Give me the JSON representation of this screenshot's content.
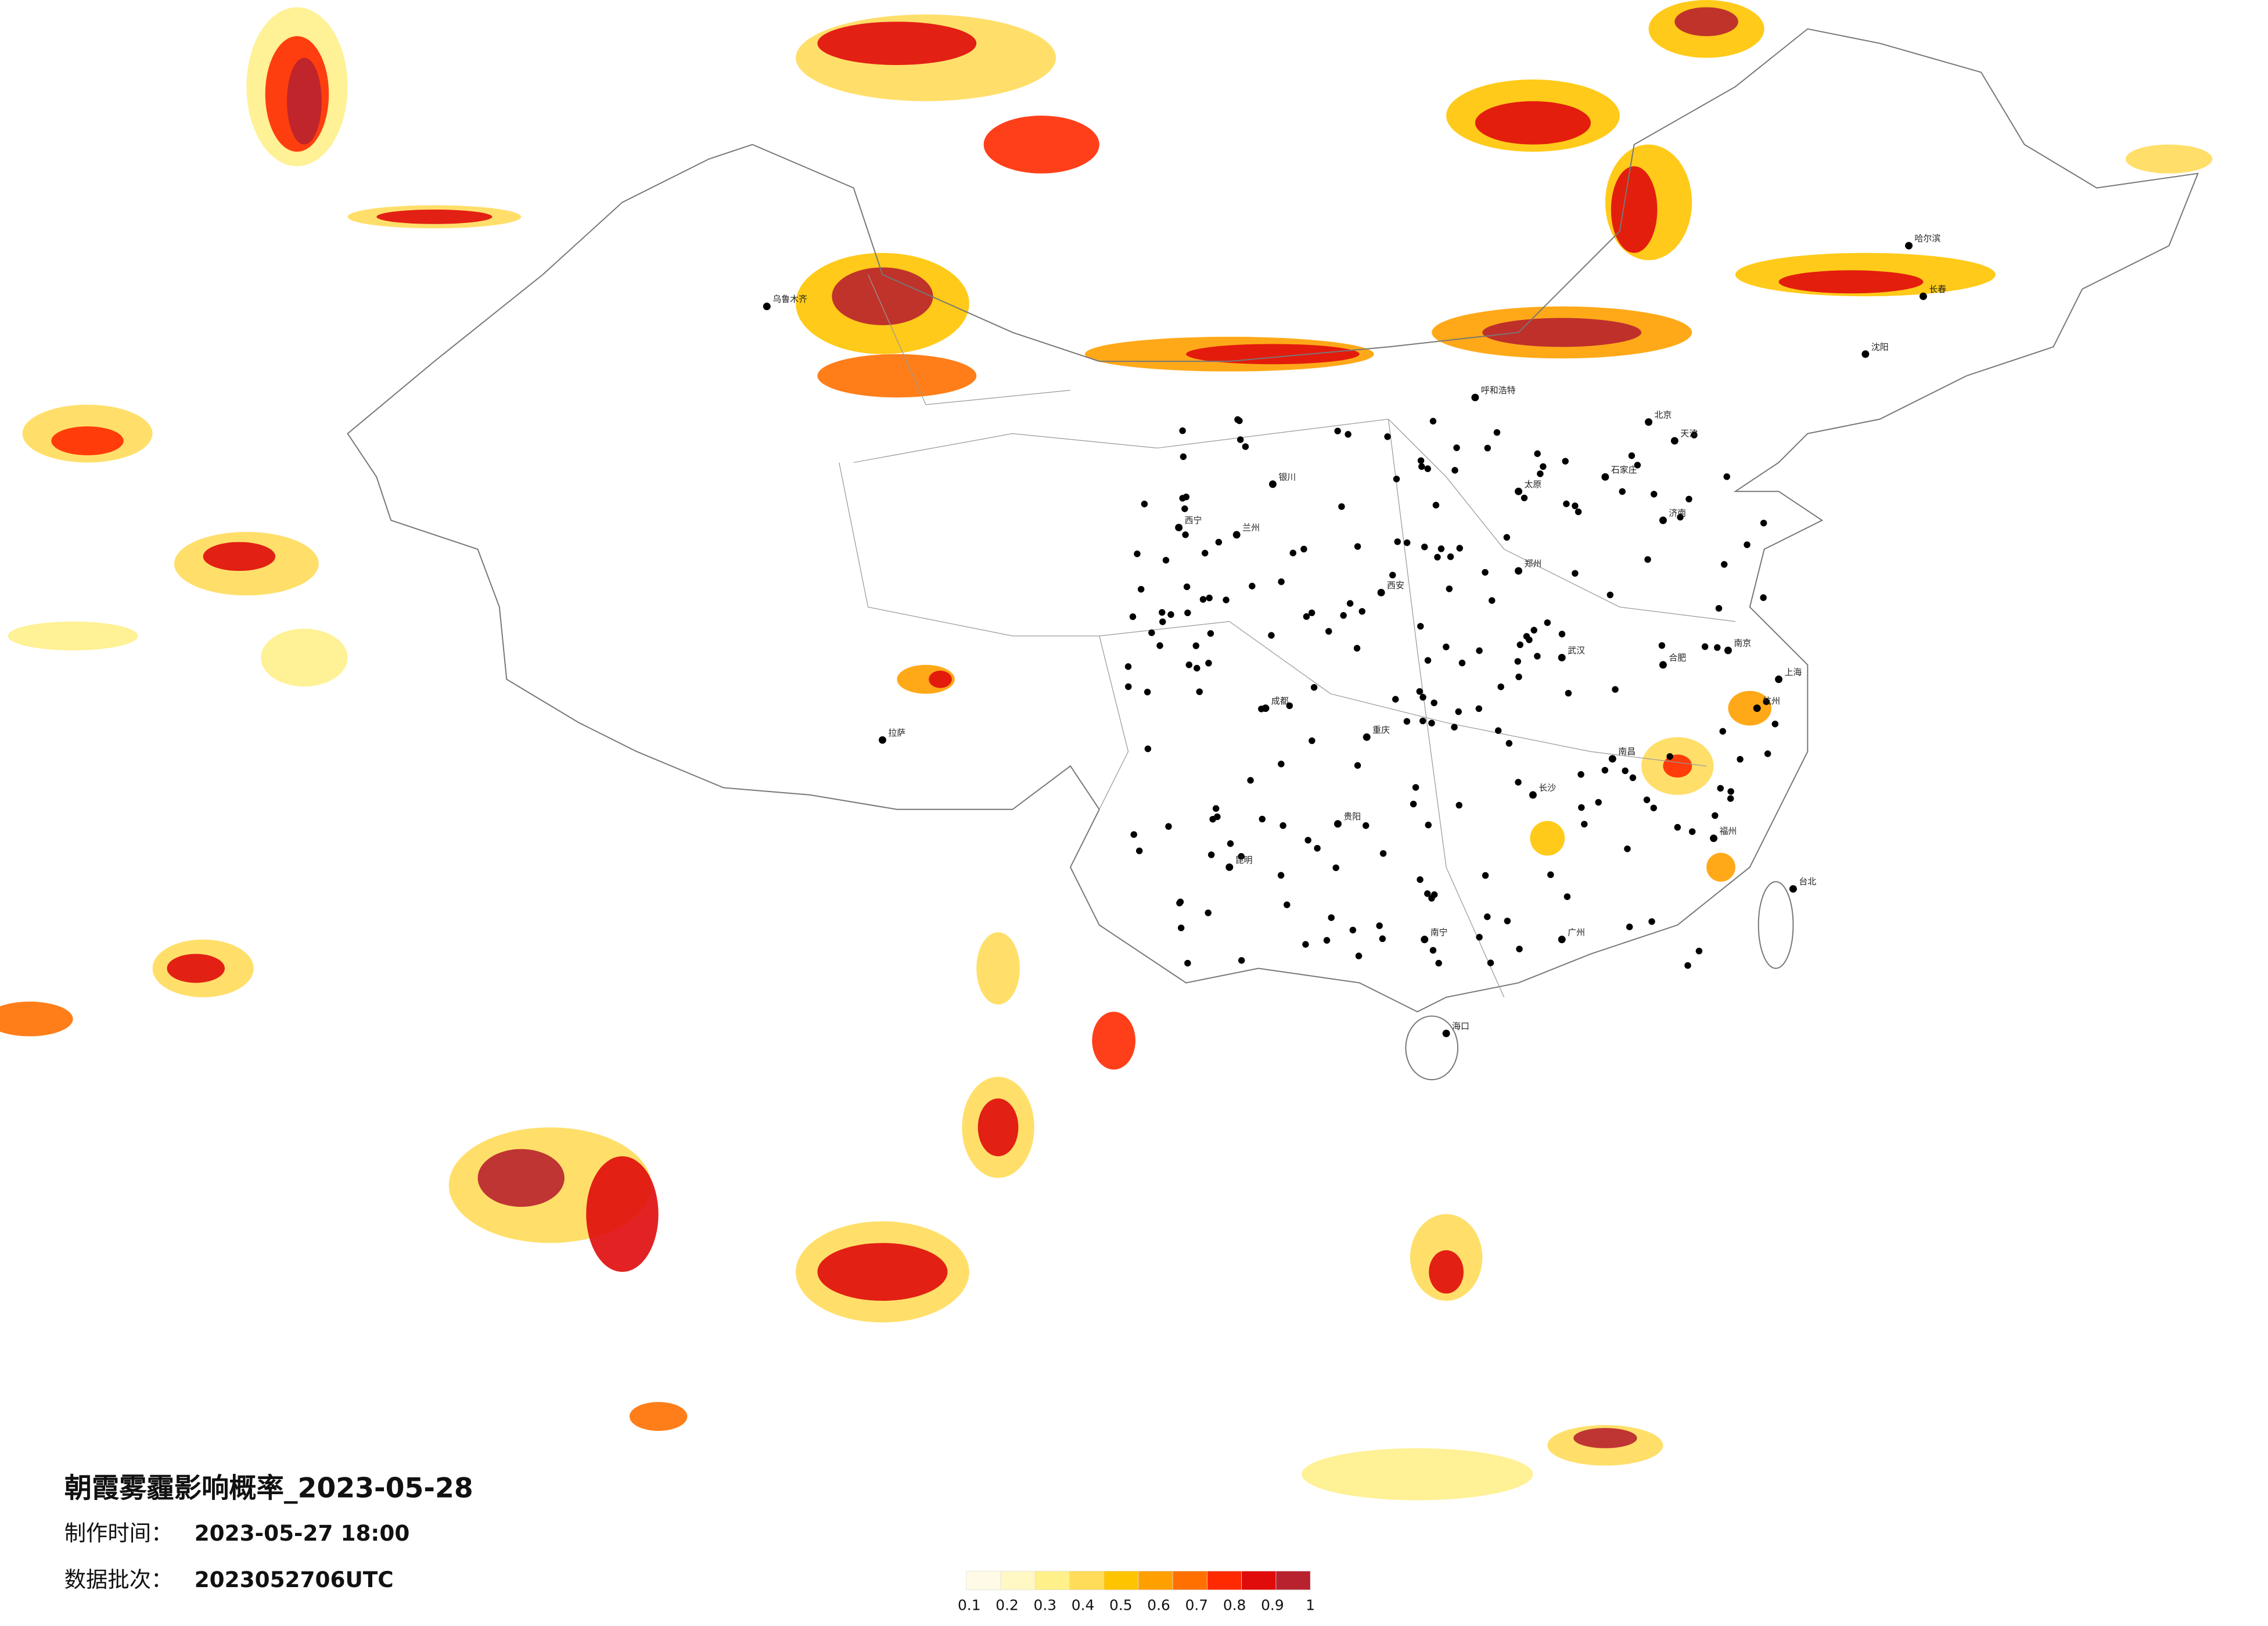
{
  "title": "朝霞雾霾影响概率_2023-05-28",
  "made_time_label": "制作时间：",
  "made_time": "2023-05-27 18:00",
  "batch_label": "数据批次：",
  "batch": "2023052706UTC",
  "legend": {
    "colors": [
      "#fffbe6",
      "#fff8c4",
      "#fff08a",
      "#ffdc5a",
      "#ffc400",
      "#ffa000",
      "#ff7000",
      "#ff2a00",
      "#e00b0b",
      "#b8222e"
    ],
    "labels": [
      "0.1",
      "0.2",
      "0.3",
      "0.4",
      "0.5",
      "0.6",
      "0.7",
      "0.8",
      "0.9",
      "1"
    ]
  },
  "cities": [
    "北京",
    "天津",
    "上海",
    "广州",
    "重庆",
    "成都",
    "武汉",
    "西安",
    "郑州",
    "南京",
    "杭州",
    "长沙",
    "南昌",
    "福州",
    "昆明",
    "贵阳",
    "南宁",
    "海口",
    "兰州",
    "西宁",
    "银川",
    "呼和浩特",
    "哈尔滨",
    "长春",
    "沈阳",
    "济南",
    "石家庄",
    "太原",
    "合肥",
    "拉萨",
    "乌鲁木齐",
    "台北"
  ]
}
